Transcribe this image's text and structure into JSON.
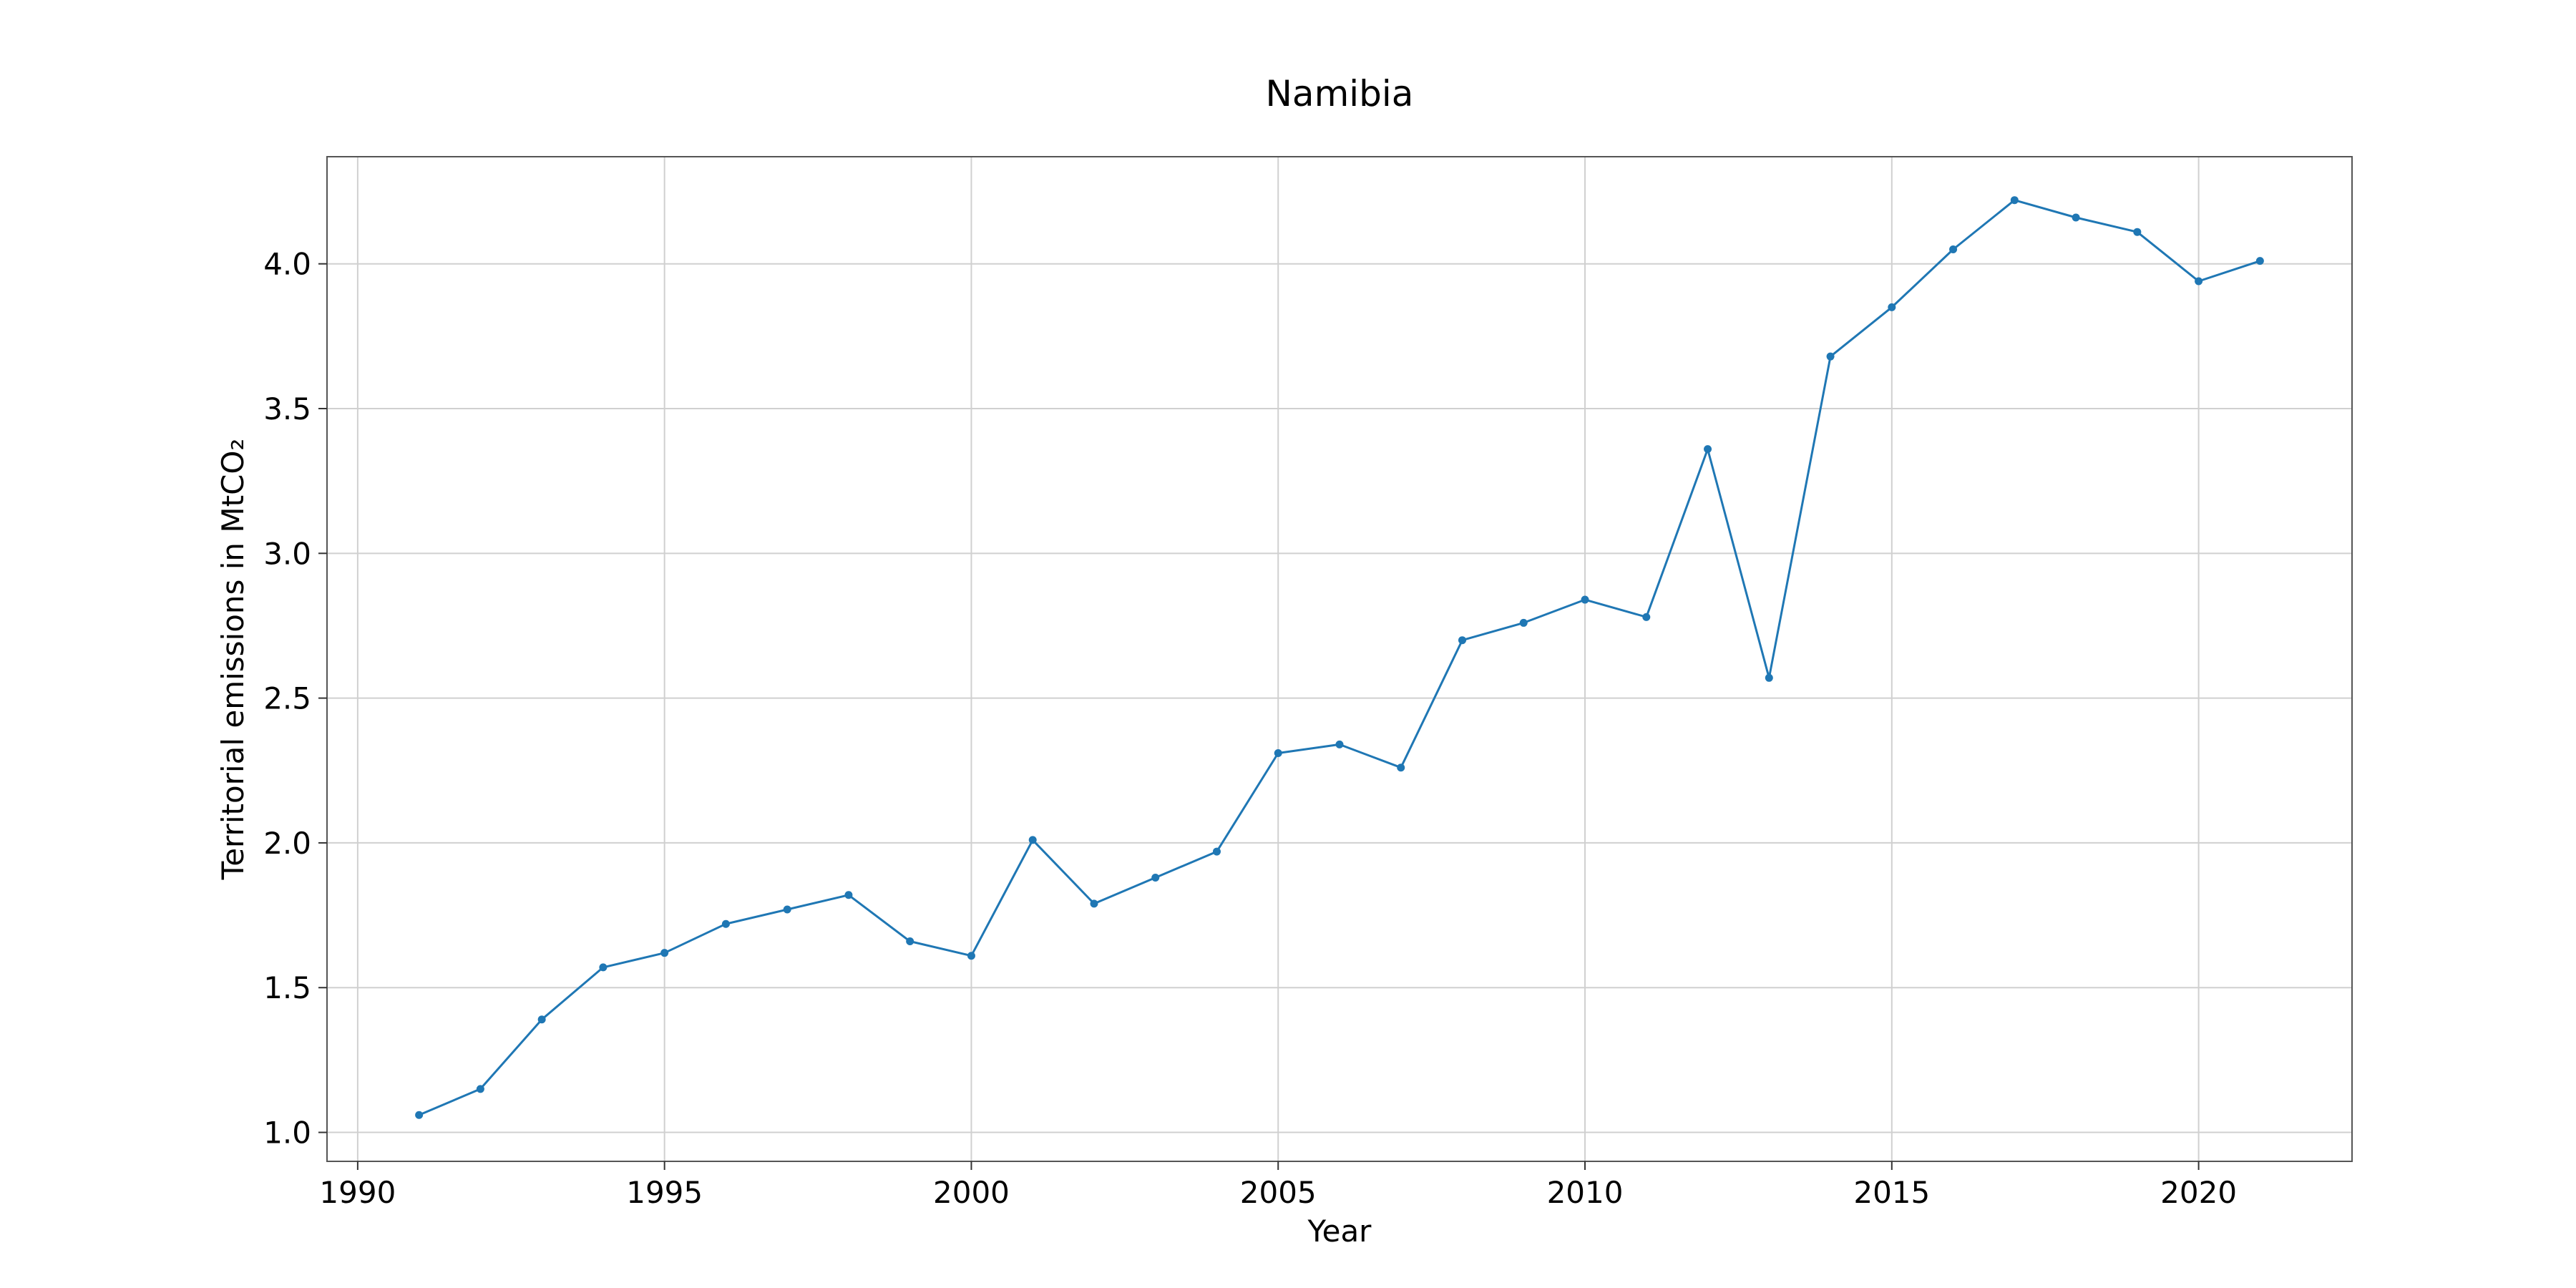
{
  "chart_data": {
    "type": "line",
    "title": "Namibia",
    "xlabel": "Year",
    "ylabel": "Territorial emissions in MtCO₂",
    "xlim": [
      1989.5,
      2022.5
    ],
    "ylim": [
      0.9,
      4.37
    ],
    "xticks": [
      1990,
      1995,
      2000,
      2005,
      2010,
      2015,
      2020
    ],
    "xtick_labels": [
      "1990",
      "1995",
      "2000",
      "2005",
      "2010",
      "2015",
      "2020"
    ],
    "yticks": [
      1.0,
      1.5,
      2.0,
      2.5,
      3.0,
      3.5,
      4.0
    ],
    "ytick_labels": [
      "1.0",
      "1.5",
      "2.0",
      "2.5",
      "3.0",
      "3.5",
      "4.0"
    ],
    "grid": true,
    "color": "#1f77b4",
    "x": [
      1991,
      1992,
      1993,
      1994,
      1995,
      1996,
      1997,
      1998,
      1999,
      2000,
      2001,
      2002,
      2003,
      2004,
      2005,
      2006,
      2007,
      2008,
      2009,
      2010,
      2011,
      2012,
      2013,
      2014,
      2015,
      2016,
      2017,
      2018,
      2019,
      2020,
      2021
    ],
    "y": [
      1.06,
      1.15,
      1.39,
      1.57,
      1.62,
      1.72,
      1.77,
      1.82,
      1.66,
      1.61,
      2.01,
      1.79,
      1.88,
      1.97,
      2.31,
      2.34,
      2.26,
      2.7,
      2.76,
      2.84,
      2.78,
      3.36,
      2.57,
      3.68,
      3.85,
      4.05,
      4.22,
      4.16,
      4.11,
      3.94,
      4.01
    ]
  }
}
